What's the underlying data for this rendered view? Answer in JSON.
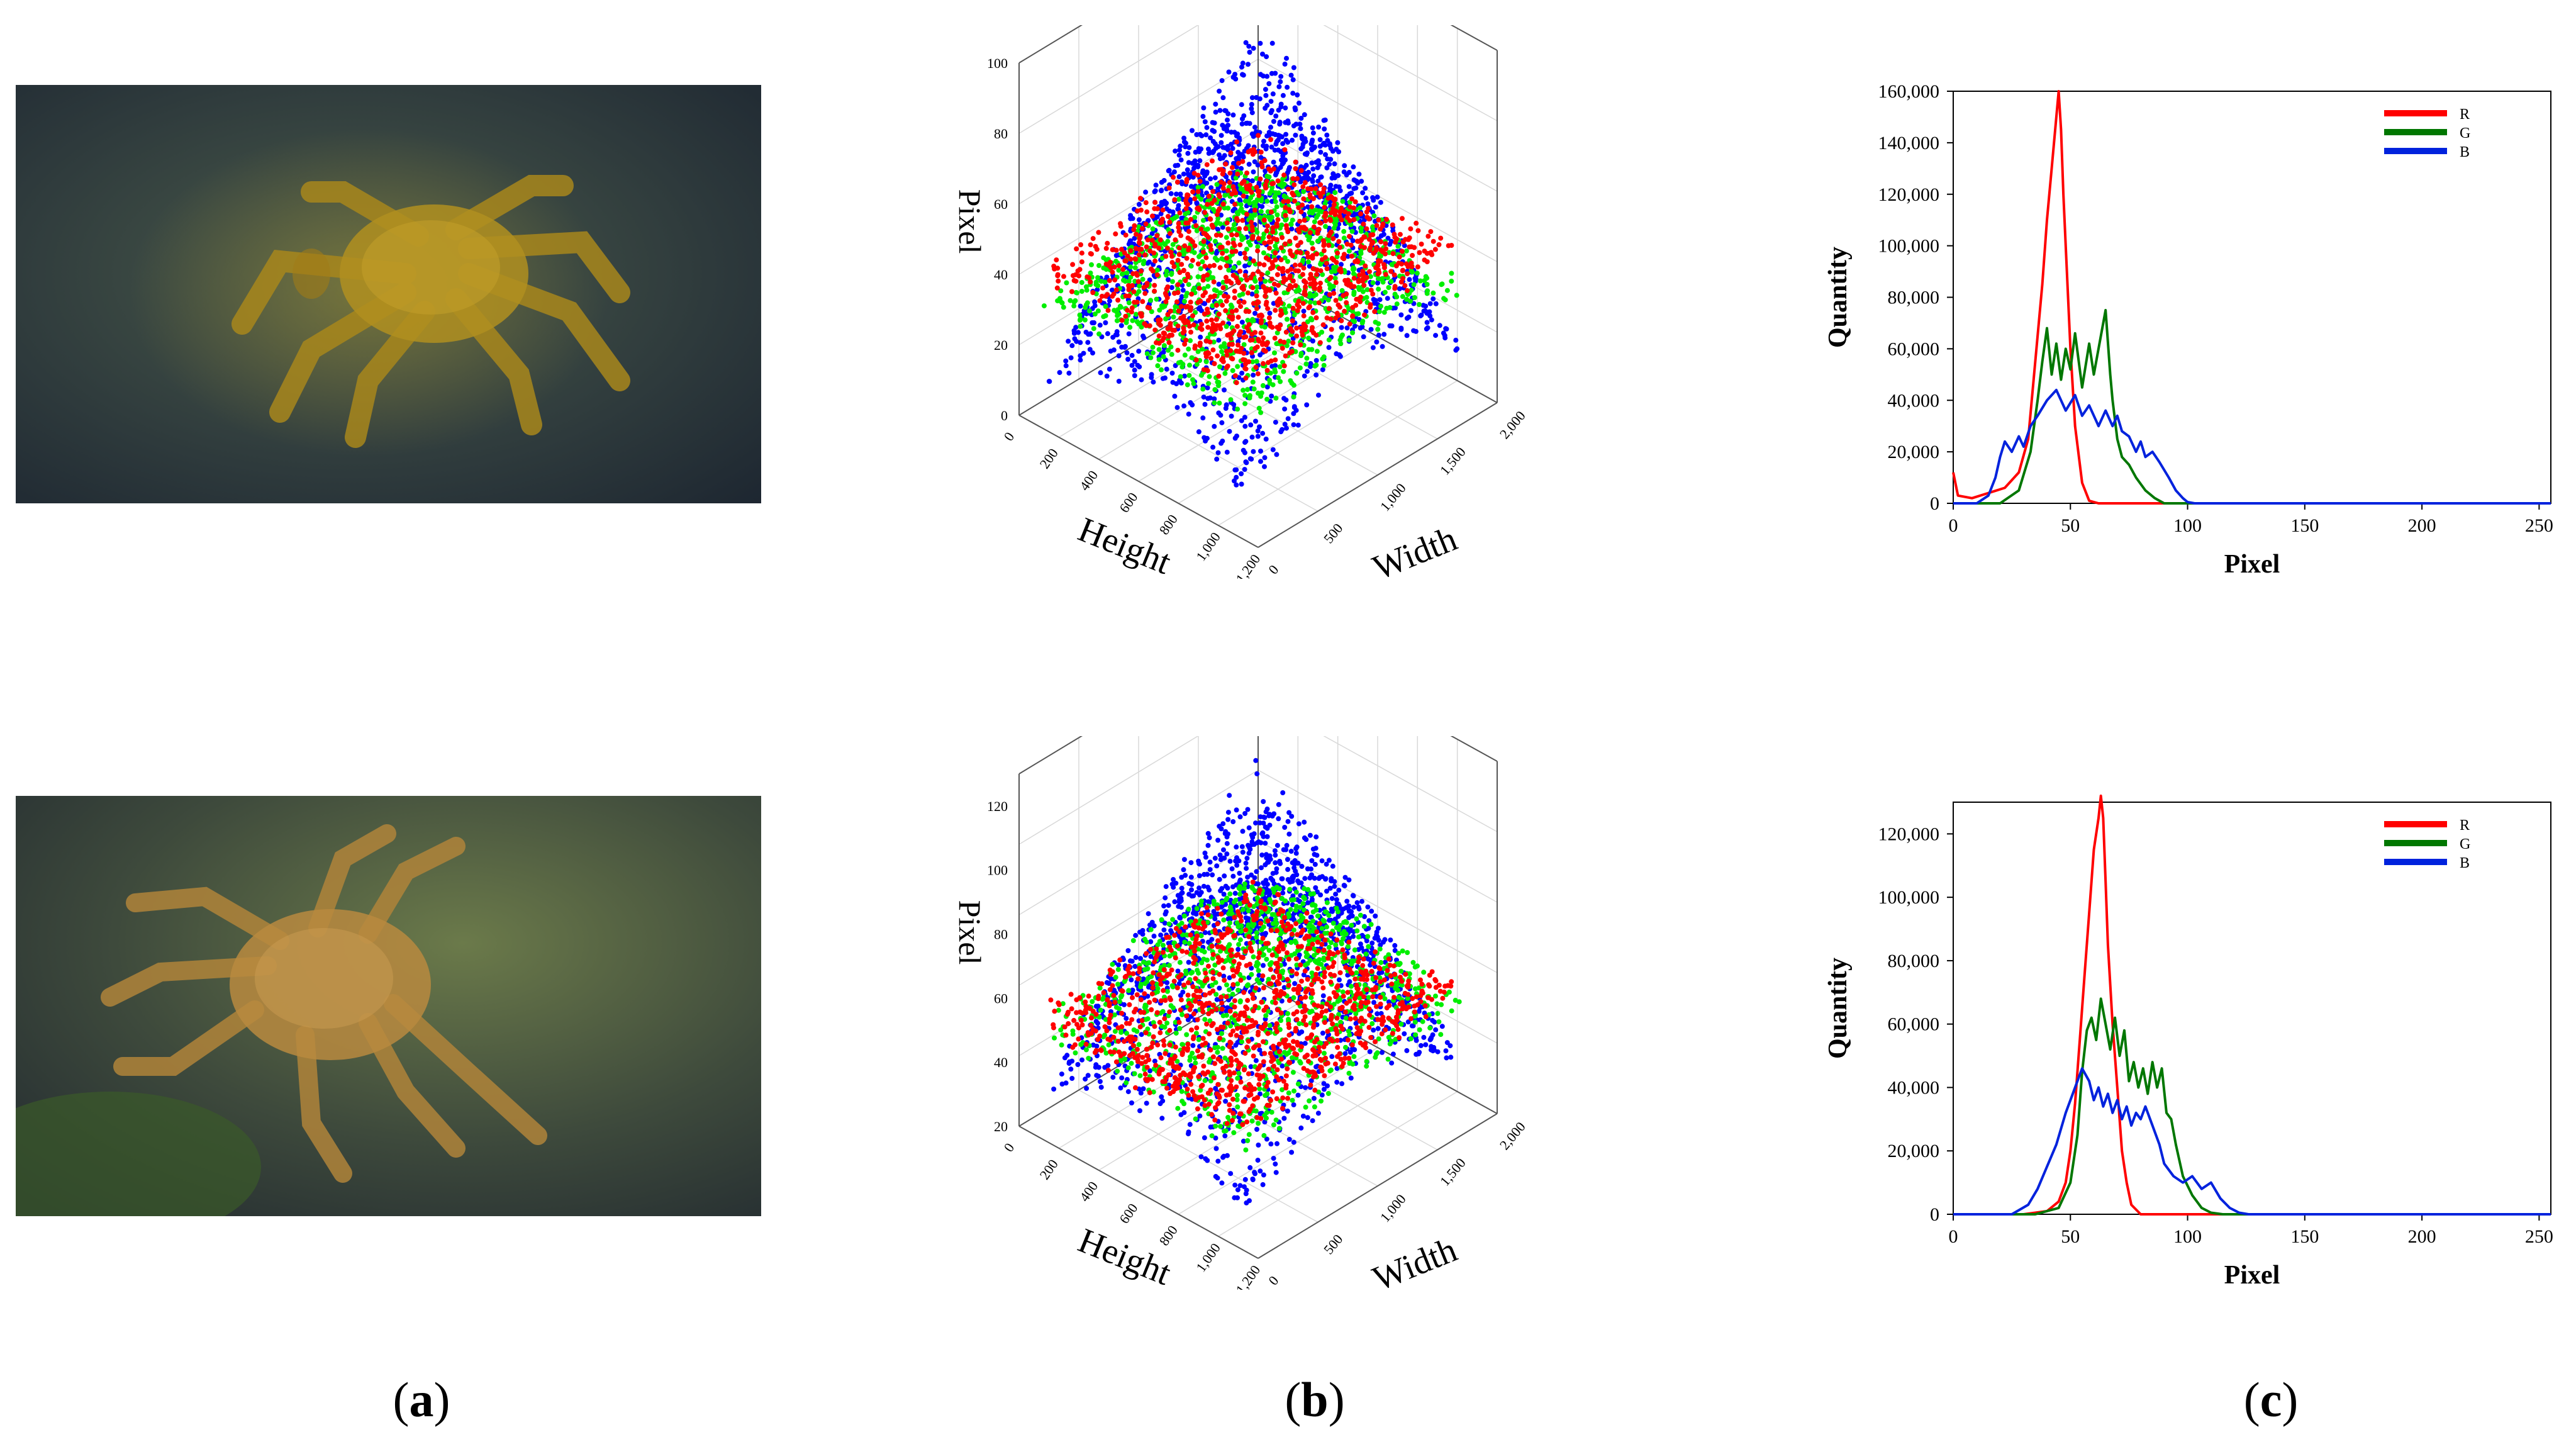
{
  "captions": [
    {
      "open": "(",
      "letter": "a",
      "close": ")"
    },
    {
      "open": "(",
      "letter": "b",
      "close": ")"
    },
    {
      "open": "(",
      "letter": "c",
      "close": ")"
    }
  ],
  "colors": {
    "R": "#ff0000",
    "G": "#007700",
    "B": "#0022dd",
    "scatter_R": "#ff0000",
    "scatter_G": "#00ee00",
    "scatter_B": "#0000ff"
  },
  "photos": [
    {
      "content": "underwater crab image 1"
    },
    {
      "content": "underwater crab image 2"
    }
  ],
  "chart_data": [
    {
      "type": "scatter",
      "panel": "row1-b",
      "xlabel": "Height",
      "ylabel": "Width",
      "zlabel": "Pixel",
      "height_ticks": [
        "0",
        "200",
        "400",
        "600",
        "800",
        "1,000",
        "1,200"
      ],
      "width_ticks": [
        "0",
        "500",
        "1,000",
        "1,500",
        "2,000"
      ],
      "pixel_ticks": [
        "0",
        "20",
        "40",
        "60",
        "80",
        "100"
      ],
      "zlim": [
        0,
        100
      ],
      "series": [
        {
          "name": "R",
          "pixel_range": [
            20,
            55
          ]
        },
        {
          "name": "G",
          "pixel_range": [
            20,
            60
          ]
        },
        {
          "name": "B",
          "pixel_range": [
            10,
            110
          ]
        }
      ]
    },
    {
      "type": "line",
      "panel": "row1-c",
      "xlabel": "Pixel",
      "ylabel": "Quantity",
      "xlim": [
        0,
        255
      ],
      "ylim": [
        0,
        160000
      ],
      "x_ticks": [
        "0",
        "50",
        "100",
        "150",
        "200",
        "250"
      ],
      "y_ticks": [
        "0",
        "20,000",
        "40,000",
        "60,000",
        "80,000",
        "100,000",
        "120,000",
        "140,000",
        "160,000"
      ],
      "legend": [
        "R",
        "G",
        "B"
      ],
      "legend_position": "top-right",
      "series": [
        {
          "name": "R",
          "x": [
            0,
            2,
            8,
            15,
            22,
            28,
            32,
            35,
            38,
            40,
            42,
            44,
            45,
            46,
            47,
            48,
            50,
            52,
            55,
            58,
            62,
            70,
            90,
            255
          ],
          "y": [
            12000,
            3000,
            2000,
            4000,
            6000,
            12000,
            25000,
            55000,
            85000,
            110000,
            130000,
            150000,
            160000,
            145000,
            120000,
            100000,
            60000,
            30000,
            8000,
            1000,
            0,
            0,
            0,
            0
          ]
        },
        {
          "name": "G",
          "x": [
            0,
            20,
            28,
            33,
            36,
            38,
            40,
            42,
            44,
            46,
            48,
            50,
            52,
            55,
            58,
            60,
            63,
            65,
            67,
            68,
            70,
            72,
            75,
            78,
            82,
            86,
            90,
            95,
            255
          ],
          "y": [
            0,
            0,
            5000,
            20000,
            40000,
            55000,
            68000,
            50000,
            62000,
            48000,
            60000,
            52000,
            66000,
            45000,
            62000,
            50000,
            65000,
            75000,
            50000,
            40000,
            25000,
            18000,
            15000,
            10000,
            5000,
            2000,
            0,
            0,
            0
          ]
        },
        {
          "name": "B",
          "x": [
            0,
            10,
            15,
            18,
            20,
            22,
            25,
            28,
            30,
            33,
            36,
            40,
            44,
            48,
            52,
            55,
            58,
            62,
            65,
            68,
            70,
            72,
            75,
            78,
            80,
            82,
            85,
            88,
            92,
            95,
            98,
            100,
            103,
            106,
            255
          ],
          "y": [
            0,
            0,
            3000,
            10000,
            18000,
            24000,
            20000,
            26000,
            22000,
            30000,
            34000,
            40000,
            44000,
            36000,
            42000,
            34000,
            38000,
            30000,
            36000,
            30000,
            34000,
            28000,
            26000,
            20000,
            24000,
            18000,
            20000,
            16000,
            10000,
            5000,
            2000,
            500,
            0,
            0,
            0
          ]
        }
      ]
    },
    {
      "type": "scatter",
      "panel": "row2-b",
      "xlabel": "Height",
      "ylabel": "Width",
      "zlabel": "Pixel",
      "height_ticks": [
        "0",
        "200",
        "400",
        "600",
        "800",
        "1,000",
        "1,200"
      ],
      "width_ticks": [
        "0",
        "500",
        "1,000",
        "1,500",
        "2,000"
      ],
      "pixel_ticks": [
        "20",
        "40",
        "60",
        "80",
        "100",
        "120"
      ],
      "zlim": [
        20,
        130
      ],
      "series": [
        {
          "name": "R",
          "pixel_range": [
            30,
            70
          ]
        },
        {
          "name": "G",
          "pixel_range": [
            30,
            100
          ]
        },
        {
          "name": "B",
          "pixel_range": [
            30,
            130
          ]
        }
      ]
    },
    {
      "type": "line",
      "panel": "row2-c",
      "xlabel": "Pixel",
      "ylabel": "Quantity",
      "xlim": [
        0,
        255
      ],
      "ylim": [
        0,
        130000
      ],
      "x_ticks": [
        "0",
        "50",
        "100",
        "150",
        "200",
        "250"
      ],
      "y_ticks": [
        "0",
        "20,000",
        "40,000",
        "60,000",
        "80,000",
        "100,000",
        "120,000"
      ],
      "legend": [
        "R",
        "G",
        "B"
      ],
      "legend_position": "top-right",
      "series": [
        {
          "name": "R",
          "x": [
            0,
            30,
            40,
            45,
            48,
            50,
            52,
            54,
            56,
            58,
            60,
            62,
            63,
            64,
            65,
            66,
            68,
            70,
            72,
            74,
            76,
            80,
            255
          ],
          "y": [
            0,
            0,
            1000,
            4000,
            10000,
            20000,
            35000,
            55000,
            75000,
            95000,
            115000,
            125000,
            132000,
            125000,
            105000,
            85000,
            60000,
            40000,
            20000,
            10000,
            3000,
            0,
            0
          ]
        },
        {
          "name": "G",
          "x": [
            0,
            35,
            45,
            50,
            53,
            55,
            57,
            59,
            61,
            63,
            65,
            67,
            69,
            71,
            73,
            75,
            77,
            79,
            81,
            83,
            85,
            87,
            89,
            91,
            93,
            95,
            98,
            102,
            106,
            110,
            115,
            255
          ],
          "y": [
            0,
            0,
            2000,
            10000,
            25000,
            45000,
            58000,
            62000,
            55000,
            68000,
            60000,
            52000,
            62000,
            50000,
            58000,
            42000,
            48000,
            40000,
            46000,
            38000,
            48000,
            40000,
            46000,
            32000,
            30000,
            22000,
            12000,
            6000,
            2000,
            500,
            0,
            0
          ]
        },
        {
          "name": "B",
          "x": [
            0,
            25,
            32,
            36,
            40,
            44,
            48,
            52,
            55,
            58,
            60,
            62,
            64,
            66,
            68,
            70,
            72,
            74,
            76,
            78,
            80,
            82,
            85,
            88,
            90,
            94,
            98,
            102,
            106,
            110,
            114,
            118,
            122,
            126,
            255
          ],
          "y": [
            0,
            0,
            3000,
            8000,
            15000,
            22000,
            32000,
            40000,
            46000,
            42000,
            36000,
            40000,
            34000,
            38000,
            32000,
            36000,
            30000,
            34000,
            28000,
            32000,
            30000,
            34000,
            28000,
            22000,
            16000,
            12000,
            10000,
            12000,
            8000,
            10000,
            5000,
            2000,
            500,
            0,
            0
          ]
        }
      ]
    }
  ]
}
